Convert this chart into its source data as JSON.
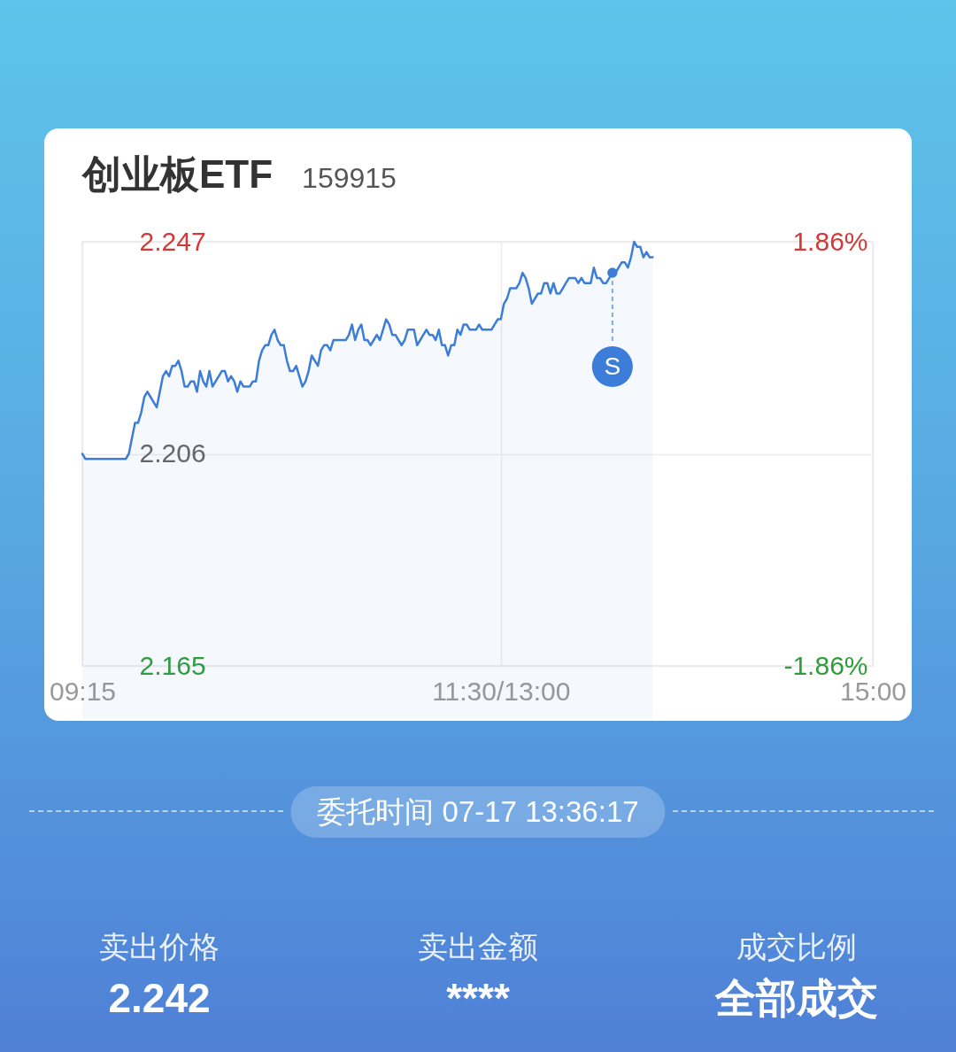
{
  "chart_data": {
    "type": "area",
    "title": "创业板ETF",
    "subtitle": "159915",
    "categories": [
      "09:15",
      null,
      null,
      null,
      null,
      null,
      null,
      null,
      null,
      null,
      null,
      null,
      null,
      null,
      null,
      null,
      null,
      null,
      null,
      null,
      null,
      null,
      null,
      null,
      null,
      null,
      null,
      null,
      null,
      null,
      null,
      null,
      null,
      null,
      null,
      null,
      null,
      null,
      null,
      null,
      null,
      null,
      null,
      null,
      null,
      null,
      null,
      null,
      null,
      null,
      null,
      null,
      null,
      null,
      null,
      null,
      null,
      null,
      null,
      null,
      null,
      null,
      null,
      null,
      null,
      null,
      null,
      null,
      null,
      null,
      null,
      null,
      null,
      null,
      null,
      null,
      null,
      null,
      null,
      null,
      null,
      null,
      null,
      null,
      null,
      null,
      null,
      null,
      null,
      null,
      null,
      null,
      null,
      null,
      null,
      null,
      null,
      null,
      null,
      null,
      null,
      null,
      null,
      null,
      null,
      null,
      null,
      null,
      null,
      null,
      null,
      null,
      null,
      null,
      null,
      null,
      null,
      null,
      null,
      null,
      null,
      null,
      null,
      null,
      null,
      null,
      null,
      null,
      null,
      null,
      null,
      null,
      null,
      null,
      null,
      "11:30/13:00",
      null,
      null,
      null,
      null,
      null,
      null,
      null,
      null,
      null,
      null,
      null,
      null,
      null,
      null,
      null,
      null,
      null,
      null,
      null,
      null,
      null,
      null,
      null,
      null,
      null,
      null,
      null,
      null,
      null,
      null,
      null,
      null,
      null,
      null,
      null,
      null,
      null,
      null,
      null,
      null,
      null,
      null,
      null,
      null,
      null,
      null,
      null,
      null,
      null,
      null,
      null,
      null,
      null,
      null,
      null,
      null,
      null,
      null,
      null,
      null,
      null,
      null,
      null,
      null,
      null,
      null,
      null,
      null,
      null,
      null,
      null,
      null,
      null,
      null,
      null,
      null,
      null,
      null,
      null,
      null,
      null,
      null,
      null,
      null,
      null,
      null,
      null,
      null,
      null,
      null,
      null,
      null,
      null,
      null,
      null,
      null,
      null,
      null,
      null,
      null,
      null,
      null,
      null,
      null,
      null,
      null,
      null,
      null,
      null,
      null,
      null,
      null,
      null,
      null,
      null,
      null,
      null,
      null,
      null,
      "15:00"
    ],
    "series": [
      {
        "color": "#3b7dd8",
        "values": [
          2.206,
          2.205,
          2.205,
          2.205,
          2.205,
          2.205,
          2.205,
          2.205,
          2.205,
          2.205,
          2.205,
          2.205,
          2.205,
          2.205,
          2.205,
          2.206,
          2.209,
          2.212,
          2.212,
          2.214,
          2.217,
          2.218,
          2.217,
          2.216,
          2.215,
          2.218,
          2.221,
          2.222,
          2.221,
          2.223,
          2.223,
          2.224,
          2.222,
          2.219,
          2.219,
          2.22,
          2.22,
          2.218,
          2.222,
          2.22,
          2.219,
          2.222,
          2.219,
          2.22,
          2.221,
          2.222,
          2.222,
          2.22,
          2.221,
          2.22,
          2.218,
          2.22,
          2.219,
          2.219,
          2.219,
          2.22,
          2.22,
          2.224,
          2.226,
          2.227,
          2.227,
          2.229,
          2.23,
          2.228,
          2.227,
          2.227,
          2.224,
          2.222,
          2.222,
          2.223,
          2.221,
          2.219,
          2.22,
          2.222,
          2.225,
          2.224,
          2.223,
          2.226,
          2.227,
          2.227,
          2.226,
          2.228,
          2.228,
          2.228,
          2.228,
          2.228,
          2.229,
          2.231,
          2.228,
          2.23,
          2.231,
          2.228,
          2.228,
          2.227,
          2.228,
          2.229,
          2.228,
          2.23,
          2.232,
          2.231,
          2.229,
          2.229,
          2.228,
          2.227,
          2.228,
          2.23,
          2.23,
          2.23,
          2.227,
          2.228,
          2.229,
          2.23,
          2.229,
          2.229,
          2.228,
          2.23,
          2.227,
          2.227,
          2.225,
          2.227,
          2.227,
          2.23,
          2.229,
          2.231,
          2.231,
          2.23,
          2.23,
          2.23,
          2.231,
          2.23,
          2.23,
          2.23,
          2.23,
          2.231,
          2.232,
          2.232,
          2.235,
          2.236,
          2.238,
          2.238,
          2.238,
          2.239,
          2.241,
          2.24,
          2.238,
          2.235,
          2.236,
          2.237,
          2.237,
          2.239,
          2.239,
          2.237,
          2.239,
          2.237,
          2.237,
          2.238,
          2.239,
          2.24,
          2.24,
          2.24,
          2.239,
          2.24,
          2.239,
          2.239,
          2.239,
          2.242,
          2.24,
          2.24,
          2.239,
          2.239,
          2.24,
          2.241,
          2.241,
          2.242,
          2.243,
          2.243,
          2.242,
          2.244,
          2.247,
          2.246,
          2.246,
          2.244,
          2.245,
          2.244,
          2.244,
          null,
          null,
          null,
          null,
          null,
          null,
          null,
          null,
          null,
          null,
          null,
          null,
          null,
          null,
          null,
          null,
          null,
          null,
          null,
          null,
          null,
          null,
          null,
          null,
          null,
          null,
          null,
          null,
          null,
          null,
          null,
          null,
          null,
          null,
          null,
          null,
          null,
          null,
          null,
          null,
          null,
          null,
          null,
          null,
          null,
          null,
          null,
          null,
          null,
          null,
          null,
          null,
          null,
          null,
          null,
          null,
          null,
          null,
          null,
          null,
          null,
          null,
          null,
          null,
          null,
          null,
          null,
          null,
          null,
          null,
          null
        ],
        "value_labels": [
          null,
          null,
          null,
          null,
          null,
          null,
          null,
          null,
          null,
          null,
          null,
          null,
          null,
          null,
          null,
          null,
          null,
          null,
          null,
          null,
          null,
          null,
          null,
          null,
          null,
          null,
          null,
          null,
          null,
          null,
          null,
          null,
          null,
          null,
          null,
          null,
          null,
          null,
          null,
          null,
          null,
          null,
          null,
          null,
          null,
          null,
          null,
          null,
          null,
          null,
          null,
          null,
          null,
          null,
          null,
          null,
          null,
          null,
          null,
          null,
          null,
          null,
          null,
          null,
          null,
          null,
          null,
          null,
          null,
          null,
          null,
          null,
          null,
          null,
          null,
          null,
          null,
          null,
          null,
          null,
          null,
          null,
          null,
          null,
          null,
          null,
          null,
          null,
          null,
          null,
          null,
          null,
          null,
          null,
          null,
          null,
          null,
          null,
          null,
          null,
          null,
          null,
          null,
          null,
          null,
          null,
          null,
          null,
          null,
          null,
          null,
          null,
          null,
          null,
          null,
          null,
          null,
          null,
          null,
          null,
          null,
          null,
          null,
          null,
          null,
          null,
          null,
          null,
          null,
          null,
          null,
          null,
          null,
          null,
          null,
          null,
          null,
          null,
          null,
          null,
          null,
          null,
          null,
          null,
          null,
          null,
          null,
          null,
          null,
          null,
          null,
          null,
          null,
          null,
          null,
          null,
          null,
          null,
          null,
          null,
          null,
          null,
          null,
          null,
          null,
          null,
          null,
          null,
          null,
          null,
          null,
          "S",
          null,
          null,
          null,
          null,
          null,
          null,
          null,
          null,
          null,
          null,
          null,
          null,
          null,
          null,
          null,
          null,
          null,
          null,
          null,
          null,
          null,
          null,
          null,
          null,
          null,
          null,
          null,
          null,
          null,
          null,
          null,
          null,
          null,
          null,
          null,
          null,
          null,
          null,
          null,
          null,
          null,
          null,
          null,
          null,
          null,
          null,
          null,
          null,
          null,
          null,
          null,
          null,
          null,
          null,
          null,
          null,
          null,
          null,
          null,
          null,
          null,
          null,
          null,
          null,
          null,
          null,
          null,
          null,
          null,
          null,
          null,
          null,
          null,
          null,
          null,
          null,
          null,
          null,
          null,
          null,
          null,
          null,
          null,
          null
        ]
      }
    ],
    "ylim": [
      2.165,
      2.247
    ],
    "yticks": [
      2.165,
      2.206,
      2.247
    ],
    "y2lim": [
      -1.86,
      1.86
    ],
    "y2ticks": [
      {
        "value": -1.86,
        "label": "-1.86%"
      },
      {
        "value": 1.86,
        "label": "1.86%"
      }
    ],
    "grid": true,
    "annotations": [
      "委托时间 07-17 13:36:17",
      "卖出价格\n2.242",
      "卖出金额\n****",
      "成交比例",
      "全部成交"
    ]
  }
}
